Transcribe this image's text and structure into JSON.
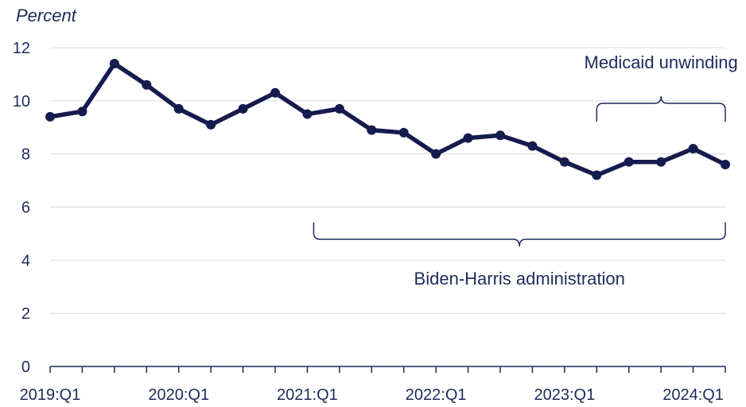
{
  "chart_data": {
    "type": "line",
    "ylabel": "Percent",
    "ylim": [
      0,
      12
    ],
    "yticks": [
      0,
      2,
      4,
      6,
      8,
      10,
      12
    ],
    "grid": true,
    "x": [
      "2019:Q1",
      "2019:Q2",
      "2019:Q3",
      "2019:Q4",
      "2020:Q1",
      "2020:Q2",
      "2020:Q3",
      "2020:Q4",
      "2021:Q1",
      "2021:Q2",
      "2021:Q3",
      "2021:Q4",
      "2022:Q1",
      "2022:Q2",
      "2022:Q3",
      "2022:Q4",
      "2023:Q1",
      "2023:Q2",
      "2023:Q3",
      "2023:Q4",
      "2024:Q1",
      "2024:Q2"
    ],
    "xtick_labels": [
      "2019:Q1",
      "2020:Q1",
      "2021:Q1",
      "2022:Q1",
      "2023:Q1",
      "2024:Q1"
    ],
    "series": [
      {
        "values": [
          9.4,
          9.6,
          11.4,
          10.6,
          9.7,
          9.1,
          9.7,
          10.3,
          9.5,
          9.7,
          8.9,
          8.8,
          8.0,
          8.6,
          8.7,
          8.3,
          7.7,
          7.2,
          7.7,
          7.7,
          8.2,
          7.6
        ]
      }
    ],
    "annotations": [
      {
        "text": "Medicaid unwinding",
        "from": "2023:Q2",
        "to": "2024:Q2"
      },
      {
        "text": "Biden-Harris administration",
        "from": "2021:Q1",
        "to": "2024:Q2"
      }
    ],
    "colors": {
      "line": "#141b4d",
      "axis": "#1f2a5c",
      "grid": "#d9dbe3"
    }
  }
}
